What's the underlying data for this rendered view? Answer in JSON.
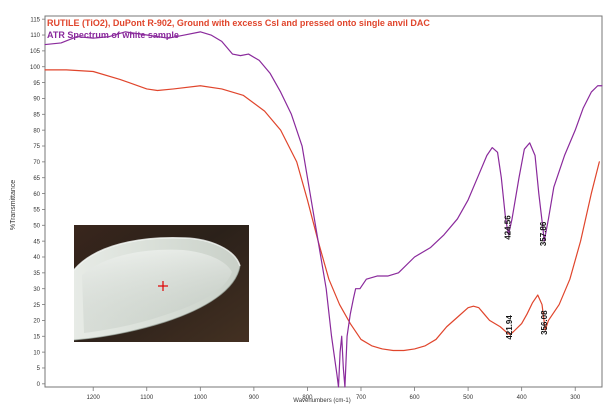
{
  "chart_data": {
    "type": "line",
    "title": "",
    "xlabel": "Wavenumbers (cm-1)",
    "ylabel": "%Transmittance",
    "xlim": [
      1290,
      250
    ],
    "ylim": [
      -1,
      116
    ],
    "x_reversed": true,
    "grid": false,
    "legend_position": "top-left",
    "x_ticks": [
      "1200",
      "1100",
      "1000",
      "900",
      "800",
      "700",
      "600",
      "500",
      "400",
      "300"
    ],
    "y_ticks": [
      "0",
      "5",
      "10",
      "15",
      "20",
      "25",
      "30",
      "35",
      "40",
      "45",
      "50",
      "55",
      "60",
      "65",
      "70",
      "75",
      "80",
      "85",
      "90",
      "95",
      "100",
      "105",
      "110",
      "115"
    ],
    "series": [
      {
        "name": "RUTILE (TiO2), DuPont R-902, Ground with excess CsI and pressed onto single anvil DAC",
        "color": "#e0452c",
        "points": [
          [
            1290,
            99
          ],
          [
            1250,
            99
          ],
          [
            1200,
            98.5
          ],
          [
            1150,
            96
          ],
          [
            1100,
            93
          ],
          [
            1080,
            92.5
          ],
          [
            1050,
            93
          ],
          [
            1000,
            94
          ],
          [
            960,
            93
          ],
          [
            920,
            91
          ],
          [
            880,
            86
          ],
          [
            850,
            80
          ],
          [
            820,
            70
          ],
          [
            800,
            58
          ],
          [
            780,
            45
          ],
          [
            760,
            33
          ],
          [
            740,
            25
          ],
          [
            720,
            19
          ],
          [
            700,
            14
          ],
          [
            680,
            12
          ],
          [
            660,
            11
          ],
          [
            640,
            10.5
          ],
          [
            620,
            10.5
          ],
          [
            600,
            11
          ],
          [
            580,
            12
          ],
          [
            560,
            14
          ],
          [
            540,
            18
          ],
          [
            520,
            21
          ],
          [
            500,
            24
          ],
          [
            490,
            24.5
          ],
          [
            480,
            24
          ],
          [
            470,
            22
          ],
          [
            460,
            20
          ],
          [
            440,
            18
          ],
          [
            430,
            16.5
          ],
          [
            422,
            15.5
          ],
          [
            415,
            16.5
          ],
          [
            400,
            19
          ],
          [
            390,
            22
          ],
          [
            380,
            25.5
          ],
          [
            370,
            28
          ],
          [
            362,
            25
          ],
          [
            356,
            17
          ],
          [
            350,
            20
          ],
          [
            330,
            25
          ],
          [
            310,
            33
          ],
          [
            290,
            45
          ],
          [
            270,
            60
          ],
          [
            255,
            70
          ]
        ]
      },
      {
        "name": "ATR Spectrum of white sample",
        "color": "#8a2a9c",
        "points": [
          [
            1290,
            107
          ],
          [
            1260,
            107.5
          ],
          [
            1230,
            109.5
          ],
          [
            1200,
            109
          ],
          [
            1170,
            109.5
          ],
          [
            1140,
            111
          ],
          [
            1100,
            110
          ],
          [
            1060,
            109
          ],
          [
            1030,
            110
          ],
          [
            1000,
            111
          ],
          [
            980,
            110
          ],
          [
            960,
            108
          ],
          [
            940,
            104
          ],
          [
            925,
            103.5
          ],
          [
            910,
            104
          ],
          [
            890,
            102
          ],
          [
            870,
            98
          ],
          [
            850,
            92
          ],
          [
            830,
            85
          ],
          [
            810,
            75
          ],
          [
            795,
            60
          ],
          [
            780,
            45
          ],
          [
            765,
            30
          ],
          [
            755,
            15
          ],
          [
            745,
            3
          ],
          [
            742,
            -1
          ],
          [
            739,
            10
          ],
          [
            736,
            15
          ],
          [
            733,
            5
          ],
          [
            730,
            -1
          ],
          [
            726,
            15
          ],
          [
            720,
            22
          ],
          [
            714,
            27
          ],
          [
            710,
            30
          ],
          [
            702,
            30
          ],
          [
            690,
            33
          ],
          [
            670,
            34
          ],
          [
            650,
            34
          ],
          [
            630,
            35
          ],
          [
            600,
            40
          ],
          [
            570,
            43
          ],
          [
            545,
            47
          ],
          [
            520,
            52
          ],
          [
            500,
            58
          ],
          [
            480,
            66
          ],
          [
            465,
            72
          ],
          [
            455,
            74.5
          ],
          [
            445,
            73
          ],
          [
            438,
            65
          ],
          [
            430,
            52
          ],
          [
            424.56,
            47
          ],
          [
            418,
            52
          ],
          [
            405,
            65
          ],
          [
            395,
            74
          ],
          [
            385,
            76
          ],
          [
            375,
            72
          ],
          [
            368,
            60
          ],
          [
            361,
            50
          ],
          [
            357.86,
            45
          ],
          [
            350,
            52
          ],
          [
            340,
            62
          ],
          [
            320,
            72
          ],
          [
            300,
            80
          ],
          [
            285,
            87
          ],
          [
            270,
            92
          ],
          [
            258,
            94
          ],
          [
            250,
            94
          ]
        ]
      }
    ],
    "annotations": [
      {
        "text": "424.56",
        "x": 424.56,
        "y": 47
      },
      {
        "text": "357.86",
        "x": 357.86,
        "y": 45
      },
      {
        "text": "421.94",
        "x": 421.94,
        "y": 15.5
      },
      {
        "text": "356.08",
        "x": 356.08,
        "y": 17
      }
    ]
  }
}
